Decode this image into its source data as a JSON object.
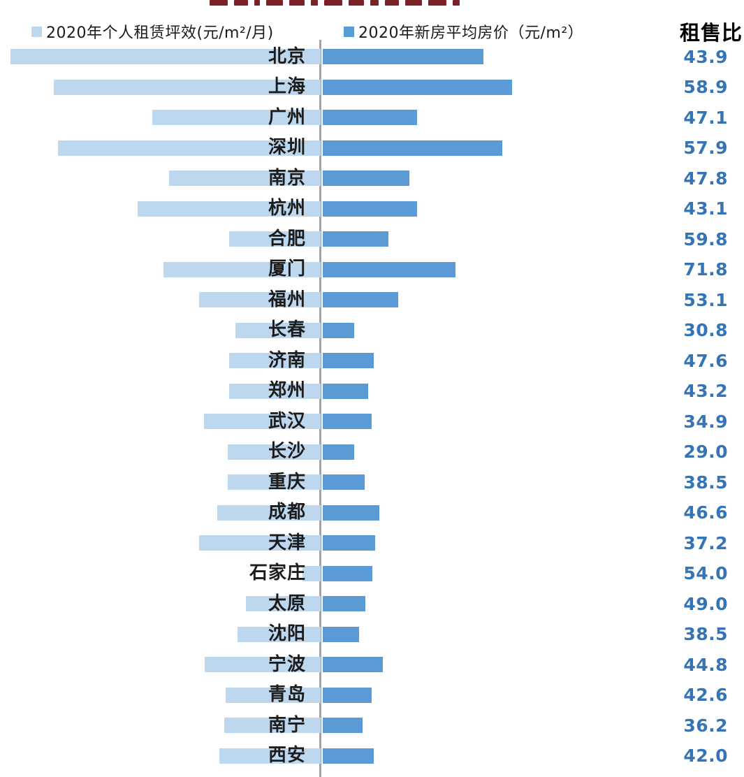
{
  "page": {
    "background": "#ffffff",
    "cropped_title_note": "dark-red chart title clipped at top edge of screenshot (illegible)"
  },
  "legend": {
    "items": [
      {
        "label": "2020年个人租赁坪效(元/m²/月)",
        "color": "#bdd7ee"
      },
      {
        "label": "2020年新房平均房价（元/m²）",
        "color": "#5b9bd5"
      }
    ]
  },
  "ratio_column": {
    "header": "租售比",
    "text_color": "#3575b5"
  },
  "chart_data": {
    "type": "bar",
    "subtype": "diverging-horizontal",
    "title": "",
    "categories": [
      "北京",
      "上海",
      "广州",
      "深圳",
      "南京",
      "杭州",
      "合肥",
      "厦门",
      "福州",
      "长春",
      "济南",
      "郑州",
      "武汉",
      "长沙",
      "重庆",
      "成都",
      "天津",
      "石家庄",
      "太原",
      "沈阳",
      "宁波",
      "青岛",
      "南宁",
      "西安"
    ],
    "series": [
      {
        "name": "2020年个人租赁坪效(元/m²/月)",
        "side": "left",
        "color": "#bdd7ee",
        "unit": "元/m²/月",
        "values_estimated": true,
        "values": [
          83.3,
          71.6,
          45.2,
          70.5,
          40.7,
          49.1,
          24.6,
          42.2,
          32.6,
          22.9,
          24.6,
          24.6,
          31.3,
          24.9,
          24.9,
          27.8,
          32.6,
          4.9,
          20.1,
          22.3,
          31.1,
          25.5,
          25.9,
          27.2
        ]
      },
      {
        "name": "2020年新房平均房价（元/m²）",
        "side": "right",
        "color": "#5b9bd5",
        "unit": "元/m²",
        "values_estimated": true,
        "values": [
          43700,
          51500,
          25800,
          49000,
          23600,
          25800,
          17900,
          36100,
          20700,
          8600,
          13900,
          12400,
          13300,
          8700,
          11400,
          15400,
          14300,
          13500,
          11600,
          9900,
          16500,
          13300,
          11000,
          13900
        ]
      },
      {
        "name": "租售比",
        "display": "text-column",
        "values": [
          "43.9",
          "58.9",
          "47.1",
          "57.9",
          "47.8",
          "43.1",
          "59.8",
          "71.8",
          "53.1",
          "30.8",
          "47.6",
          "43.2",
          "34.9",
          "29.0",
          "38.5",
          "46.6",
          "37.2",
          "54.0",
          "49.0",
          "38.5",
          "44.8",
          "42.6",
          "36.2",
          "42.0"
        ]
      }
    ],
    "axis": {
      "center_line_color": "#a3a3a3",
      "numeric_axis_labels": false,
      "gridlines": false
    },
    "legend_position": "top",
    "note": "Only 租售比 values are printed on the chart; bar series values are estimated from bar lengths (no numeric axis shown). Title at top is cropped out of frame."
  }
}
